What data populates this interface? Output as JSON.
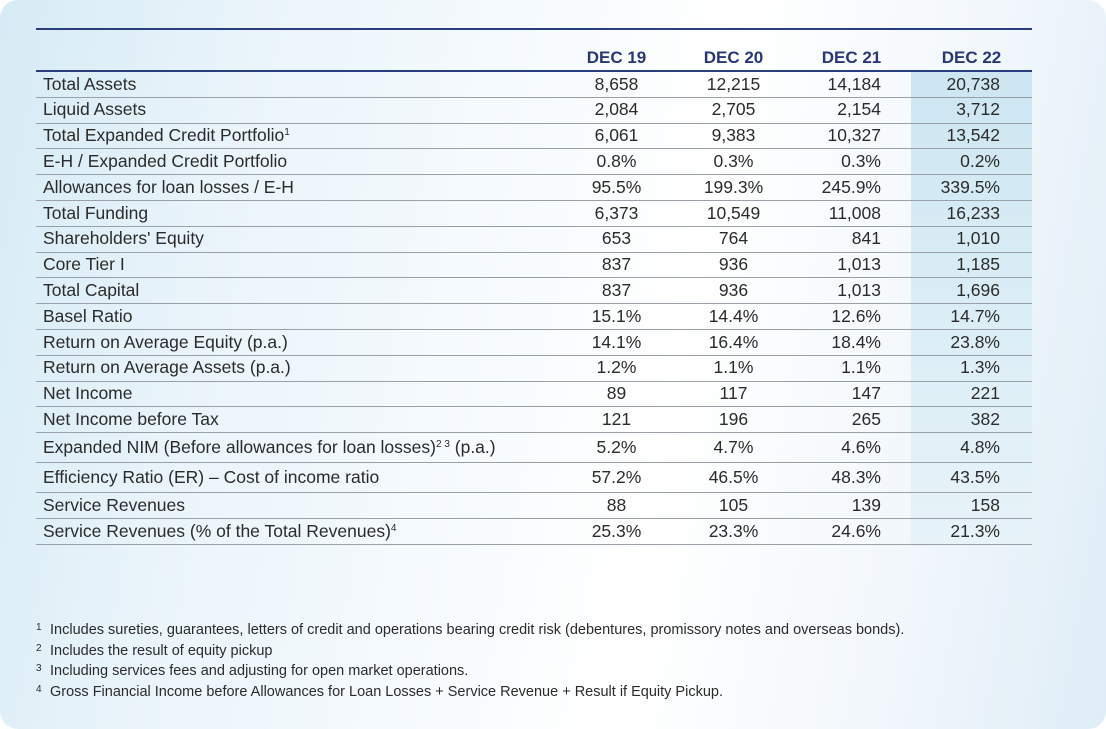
{
  "table": {
    "columns": [
      "DEC 19",
      "DEC 20",
      "DEC 21",
      "DEC 22"
    ],
    "rows": [
      {
        "label": "Total Assets",
        "sup": "",
        "values": [
          "8,658",
          "12,215",
          "14,184",
          "20,738"
        ]
      },
      {
        "label": "Liquid Assets",
        "sup": "",
        "values": [
          "2,084",
          "2,705",
          "2,154",
          "3,712"
        ]
      },
      {
        "label": "Total Expanded Credit Portfolio",
        "sup": "1",
        "values": [
          "6,061",
          "9,383",
          "10,327",
          "13,542"
        ]
      },
      {
        "label": "E-H / Expanded Credit Portfolio",
        "sup": "",
        "values": [
          "0.8%",
          "0.3%",
          "0.3%",
          "0.2%"
        ]
      },
      {
        "label": "Allowances for loan losses / E-H",
        "sup": "",
        "values": [
          "95.5%",
          "199.3%",
          "245.9%",
          "339.5%"
        ]
      },
      {
        "label": "Total Funding",
        "sup": "",
        "values": [
          "6,373",
          "10,549",
          "11,008",
          "16,233"
        ]
      },
      {
        "label": "Shareholders' Equity",
        "sup": "",
        "values": [
          "653",
          "764",
          "841",
          "1,010"
        ]
      },
      {
        "label": "Core Tier I",
        "sup": "",
        "values": [
          "837",
          "936",
          "1,013",
          "1,185"
        ]
      },
      {
        "label": "Total Capital",
        "sup": "",
        "values": [
          "837",
          "936",
          "1,013",
          "1,696"
        ]
      },
      {
        "label": "Basel Ratio",
        "sup": "",
        "values": [
          "15.1%",
          "14.4%",
          "12.6%",
          "14.7%"
        ]
      },
      {
        "label": "Return on Average Equity (p.a.)",
        "sup": "",
        "values": [
          "14.1%",
          "16.4%",
          "18.4%",
          "23.8%"
        ]
      },
      {
        "label": "Return on Average Assets (p.a.)",
        "sup": "",
        "values": [
          "1.2%",
          "1.1%",
          "1.1%",
          "1.3%"
        ]
      },
      {
        "label": "Net Income",
        "sup": "",
        "values": [
          "89",
          "117",
          "147",
          "221"
        ]
      },
      {
        "label": "Net Income before Tax",
        "sup": "",
        "values": [
          "121",
          "196",
          "265",
          "382"
        ]
      },
      {
        "label": "Expanded NIM (Before allowances for loan losses)",
        "sup": "2 3",
        "suffix": " (p.a.)",
        "values": [
          "5.2%",
          "4.7%",
          "4.6%",
          "4.8%"
        ]
      },
      {
        "label": "Efficiency Ratio (ER) – Cost of income ratio",
        "sup": "",
        "values": [
          "57.2%",
          "46.5%",
          "48.3%",
          "43.5%"
        ]
      },
      {
        "label": "Service Revenues",
        "sup": "",
        "values": [
          "88",
          "105",
          "139",
          "158"
        ]
      },
      {
        "label": "Service Revenues (% of the Total Revenues)",
        "sup": "4",
        "values": [
          "25.3%",
          "23.3%",
          "24.6%",
          "21.3%"
        ]
      }
    ]
  },
  "footnotes": [
    {
      "mark": "1",
      "text": "Includes sureties, guarantees, letters of credit and operations bearing credit risk (debentures, promissory notes and overseas bonds)."
    },
    {
      "mark": "2",
      "text": "Includes the result of equity pickup"
    },
    {
      "mark": "3",
      "text": "Including services fees and adjusting for open market operations."
    },
    {
      "mark": "4",
      "text": "Gross Financial Income before Allowances for Loan Losses + Service Revenue + Result if Equity Pickup."
    }
  ]
}
